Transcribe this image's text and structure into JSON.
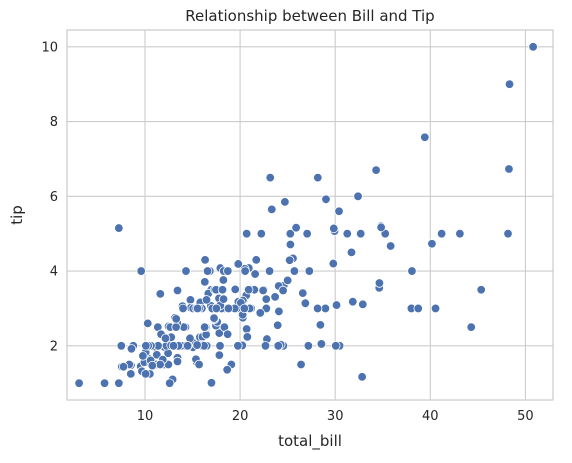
{
  "chart_data": {
    "type": "scatter",
    "title": "Relationship between Bill and Tip",
    "xlabel": "total_bill",
    "ylabel": "tip",
    "xlim": [
      1.8,
      52.9
    ],
    "ylim": [
      0.55,
      10.45
    ],
    "xticks": [
      10,
      20,
      30,
      40,
      50
    ],
    "yticks": [
      2,
      4,
      6,
      8,
      10
    ],
    "grid": true,
    "point_color": "#4c72b0",
    "series": [
      {
        "x": [
          16.99,
          10.34,
          21.01,
          23.68,
          24.59,
          25.29,
          8.77,
          26.88,
          15.04,
          14.78,
          10.27,
          35.26,
          15.42,
          18.43,
          14.83,
          21.58,
          10.33,
          16.29,
          16.97,
          20.65,
          17.92,
          20.29,
          15.77,
          39.42,
          19.82,
          17.81,
          13.37,
          12.69,
          21.7,
          19.65,
          9.55,
          18.35,
          15.06,
          20.69,
          17.78,
          24.06,
          16.31,
          16.93,
          18.69,
          31.27,
          16.04,
          17.46,
          13.94,
          9.68,
          30.4,
          18.29,
          22.23,
          32.4,
          28.55,
          18.04,
          12.54,
          10.29,
          34.81,
          9.94,
          25.56,
          19.49,
          38.01,
          26.41,
          11.24,
          48.27,
          20.29,
          13.81,
          11.02,
          18.29,
          17.59,
          20.08,
          16.45,
          3.07,
          20.23,
          15.01,
          12.02,
          17.07,
          26.86,
          25.28,
          14.73,
          10.51,
          17.92,
          27.2,
          22.76,
          17.29,
          19.44,
          16.66,
          10.07,
          32.68,
          15.98,
          34.83,
          13.03,
          18.28,
          24.71,
          21.16,
          28.97,
          22.49,
          5.75,
          16.32,
          22.75,
          40.17,
          27.28,
          12.03,
          21.01,
          12.46,
          11.35,
          15.38,
          44.3,
          22.42,
          20.92,
          15.36,
          20.49,
          25.21,
          18.24,
          14.31,
          14.0,
          7.25,
          38.07,
          23.95,
          25.71,
          17.31,
          29.93,
          10.65,
          12.43,
          24.08,
          11.69,
          13.42,
          14.26,
          15.95,
          12.48,
          29.8,
          8.52,
          14.52,
          11.38,
          22.82,
          19.08,
          20.27,
          11.17,
          12.26,
          18.26,
          8.51,
          10.33,
          14.15,
          16.0,
          13.16,
          17.47,
          34.3,
          41.19,
          27.05,
          16.43,
          8.35,
          18.64,
          11.87,
          9.78,
          7.51,
          14.07,
          13.13,
          17.26,
          24.55,
          19.77,
          29.85,
          48.17,
          25.0,
          13.39,
          16.49,
          21.5,
          12.66,
          16.21,
          13.81,
          17.51,
          24.52,
          20.76,
          31.71,
          10.59,
          10.63,
          50.81,
          15.81,
          7.25,
          31.85,
          16.82,
          32.9,
          17.89,
          14.48,
          9.6,
          34.63,
          34.65,
          23.33,
          45.35,
          23.17,
          40.55,
          20.69,
          20.9,
          30.46,
          18.15,
          23.1,
          15.69,
          19.81,
          28.44,
          15.48,
          16.58,
          7.56,
          10.34,
          43.11,
          13.0,
          13.51,
          18.71,
          12.74,
          13.0,
          16.4,
          20.53,
          16.47,
          26.59,
          38.73,
          24.27,
          12.76,
          30.06,
          25.89,
          48.33,
          13.27,
          28.17,
          12.9,
          28.15,
          11.59,
          7.74,
          30.14,
          12.16,
          13.42,
          8.58,
          15.98,
          13.42,
          16.27,
          10.09,
          20.45,
          13.28,
          22.12,
          24.01,
          15.69,
          11.61,
          10.77,
          15.53,
          10.07,
          12.6,
          32.83,
          35.83,
          29.03,
          27.18,
          22.67,
          17.82,
          18.78
        ],
        "y": [
          1.01,
          1.66,
          3.5,
          3.31,
          3.61,
          4.71,
          2.0,
          3.12,
          1.96,
          3.23,
          1.71,
          5.0,
          1.57,
          3.0,
          3.02,
          3.92,
          1.67,
          3.71,
          3.5,
          3.35,
          4.08,
          2.75,
          2.23,
          7.58,
          3.18,
          2.34,
          2.0,
          2.0,
          4.3,
          3.0,
          1.45,
          2.5,
          3.0,
          2.45,
          3.27,
          3.6,
          2.0,
          3.07,
          2.31,
          5.0,
          2.24,
          2.54,
          3.06,
          1.32,
          5.6,
          3.0,
          5.0,
          6.0,
          2.05,
          3.0,
          2.5,
          2.6,
          5.2,
          1.56,
          4.34,
          3.51,
          3.0,
          1.5,
          1.76,
          6.73,
          3.21,
          2.0,
          1.98,
          3.76,
          2.64,
          3.15,
          2.47,
          1.0,
          2.01,
          2.09,
          1.97,
          3.0,
          3.14,
          5.0,
          2.2,
          1.25,
          3.08,
          4.0,
          3.0,
          2.71,
          3.0,
          3.4,
          1.83,
          5.0,
          2.03,
          5.17,
          2.0,
          4.0,
          5.85,
          3.0,
          3.0,
          3.5,
          1.0,
          4.3,
          3.25,
          4.73,
          4.0,
          1.5,
          3.0,
          1.5,
          2.5,
          3.0,
          2.5,
          3.48,
          4.08,
          1.64,
          4.06,
          4.29,
          3.76,
          4.0,
          3.0,
          1.0,
          4.0,
          2.55,
          4.0,
          3.5,
          5.07,
          1.5,
          1.8,
          2.92,
          2.31,
          1.68,
          2.5,
          2.0,
          2.52,
          4.2,
          1.48,
          2.0,
          2.0,
          2.18,
          1.5,
          2.83,
          1.5,
          2.0,
          3.25,
          1.25,
          2.0,
          2.0,
          2.0,
          2.75,
          3.5,
          6.7,
          5.0,
          5.0,
          2.3,
          1.5,
          1.36,
          1.63,
          1.73,
          2.0,
          2.5,
          2.0,
          2.74,
          2.0,
          2.0,
          5.14,
          5.0,
          3.75,
          2.61,
          2.0,
          3.5,
          2.5,
          2.0,
          2.0,
          3.0,
          3.48,
          2.24,
          4.5,
          1.61,
          2.0,
          10.0,
          3.16,
          5.15,
          3.18,
          4.0,
          3.11,
          2.0,
          2.0,
          4.0,
          3.55,
          3.68,
          5.65,
          3.5,
          6.5,
          3.0,
          5.0,
          3.5,
          2.0,
          3.5,
          4.0,
          1.5,
          4.19,
          2.56,
          2.02,
          4.0,
          1.44,
          2.0,
          5.0,
          2.0,
          2.0,
          4.0,
          2.01,
          2.0,
          2.5,
          4.0,
          3.23,
          3.41,
          3.0,
          2.03,
          2.23,
          2.0,
          5.16,
          9.0,
          2.5,
          6.5,
          1.1,
          3.0,
          1.5,
          1.44,
          3.09,
          2.2,
          3.48,
          1.92,
          3.0,
          1.58,
          2.5,
          2.0,
          3.0,
          2.72,
          2.88,
          2.0,
          3.0,
          3.39,
          1.47,
          3.0,
          1.25,
          1.0,
          1.17,
          4.67,
          5.92,
          2.0,
          2.0,
          1.75,
          3.0
        ]
      }
    ]
  }
}
